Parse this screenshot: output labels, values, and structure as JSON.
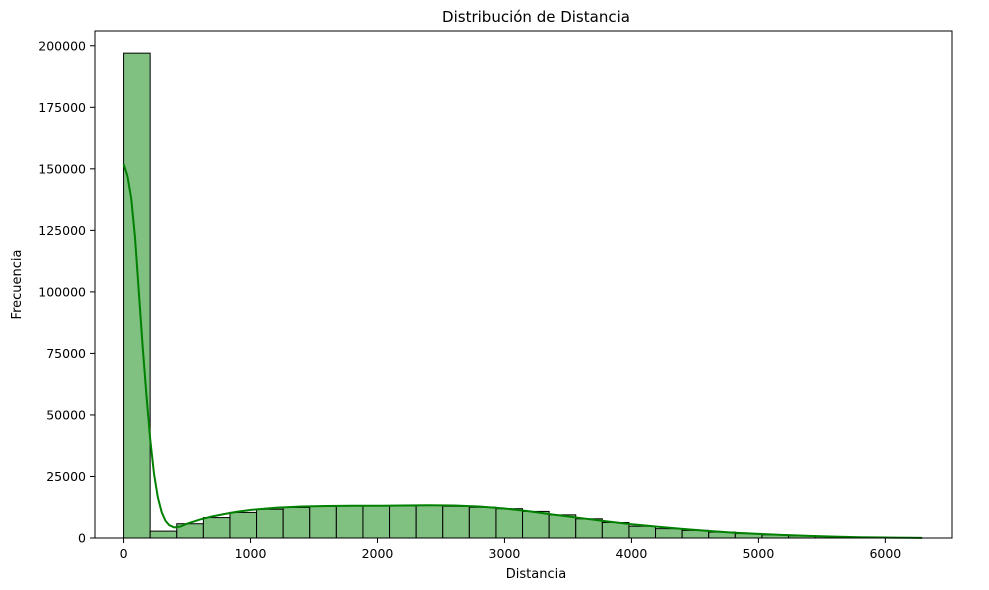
{
  "chart_data": {
    "type": "bar",
    "title": "Distribución de Distancia",
    "xlabel": "Distancia",
    "ylabel": "Frecuencia",
    "xlim": [
      -225,
      6525
    ],
    "ylim": [
      0,
      206000
    ],
    "x_ticks": [
      0,
      1000,
      2000,
      3000,
      4000,
      5000,
      6000
    ],
    "y_ticks": [
      0,
      25000,
      50000,
      75000,
      100000,
      125000,
      150000,
      175000,
      200000
    ],
    "bin_width": 209.5,
    "bins": [
      {
        "x0": 0,
        "value": 197000
      },
      {
        "x0": 209.5,
        "value": 2800
      },
      {
        "x0": 419,
        "value": 5800
      },
      {
        "x0": 628.5,
        "value": 8300
      },
      {
        "x0": 838,
        "value": 10400
      },
      {
        "x0": 1047.5,
        "value": 11700
      },
      {
        "x0": 1257,
        "value": 12400
      },
      {
        "x0": 1466.5,
        "value": 12800
      },
      {
        "x0": 1676,
        "value": 13000
      },
      {
        "x0": 1885.5,
        "value": 13000
      },
      {
        "x0": 2095,
        "value": 13100
      },
      {
        "x0": 2304.5,
        "value": 13200
      },
      {
        "x0": 2514,
        "value": 12900
      },
      {
        "x0": 2723.5,
        "value": 12500
      },
      {
        "x0": 2933,
        "value": 11900
      },
      {
        "x0": 3142.5,
        "value": 10800
      },
      {
        "x0": 3352,
        "value": 9400
      },
      {
        "x0": 3561.5,
        "value": 7800
      },
      {
        "x0": 3771,
        "value": 6300
      },
      {
        "x0": 3980.5,
        "value": 4800
      },
      {
        "x0": 4190,
        "value": 3800
      },
      {
        "x0": 4399.5,
        "value": 3100
      },
      {
        "x0": 4609,
        "value": 2400
      },
      {
        "x0": 4818.5,
        "value": 1800
      },
      {
        "x0": 5028,
        "value": 1300
      },
      {
        "x0": 5237.5,
        "value": 900
      },
      {
        "x0": 5447,
        "value": 600
      },
      {
        "x0": 5656.5,
        "value": 400
      },
      {
        "x0": 5866,
        "value": 250
      },
      {
        "x0": 6075.5,
        "value": 150
      }
    ],
    "kde": [
      [
        0,
        152000
      ],
      [
        30,
        147000
      ],
      [
        60,
        138000
      ],
      [
        90,
        122000
      ],
      [
        120,
        100000
      ],
      [
        150,
        78000
      ],
      [
        180,
        58000
      ],
      [
        210,
        40000
      ],
      [
        240,
        26000
      ],
      [
        270,
        16500
      ],
      [
        300,
        10500
      ],
      [
        330,
        7000
      ],
      [
        360,
        5200
      ],
      [
        400,
        4300
      ],
      [
        450,
        4700
      ],
      [
        500,
        5800
      ],
      [
        600,
        7500
      ],
      [
        700,
        8800
      ],
      [
        800,
        9800
      ],
      [
        900,
        10700
      ],
      [
        1000,
        11400
      ],
      [
        1200,
        12300
      ],
      [
        1400,
        12800
      ],
      [
        1600,
        13000
      ],
      [
        1800,
        13100
      ],
      [
        2000,
        13100
      ],
      [
        2200,
        13200
      ],
      [
        2400,
        13300
      ],
      [
        2600,
        13200
      ],
      [
        2800,
        12800
      ],
      [
        3000,
        12000
      ],
      [
        3200,
        10800
      ],
      [
        3400,
        9400
      ],
      [
        3600,
        8100
      ],
      [
        3800,
        6800
      ],
      [
        4000,
        5600
      ],
      [
        4200,
        4600
      ],
      [
        4400,
        3700
      ],
      [
        4600,
        2900
      ],
      [
        4800,
        2200
      ],
      [
        5000,
        1700
      ],
      [
        5200,
        1200
      ],
      [
        5400,
        850
      ],
      [
        5600,
        550
      ],
      [
        5800,
        330
      ],
      [
        6000,
        180
      ],
      [
        6200,
        80
      ],
      [
        6290,
        50
      ]
    ],
    "bar_fill": "#80c080",
    "bar_edge": "#000000",
    "kde_color": "#008000",
    "grid": false,
    "legend": "none"
  }
}
